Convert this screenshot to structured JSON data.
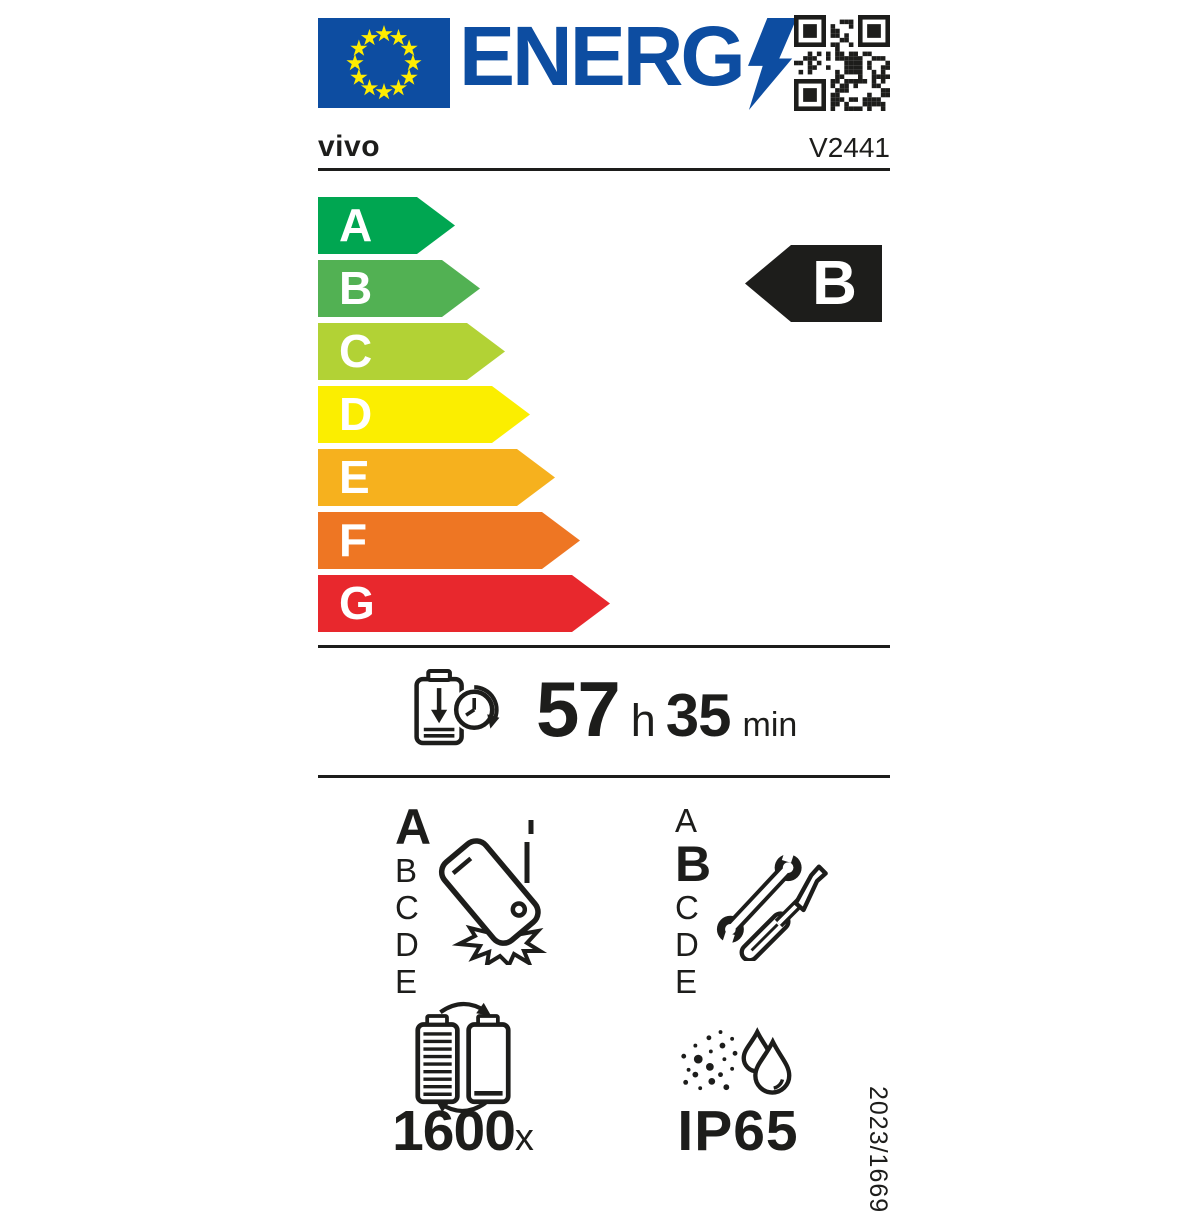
{
  "header": {
    "energ_wordmark": "ENERG",
    "eu_flag": "eu-flag",
    "qr": "qr-code"
  },
  "brand": "vivo",
  "model": "V2441",
  "energy_scale": {
    "rating": "B",
    "classes": [
      {
        "letter": "A",
        "color": "#00a651"
      },
      {
        "letter": "B",
        "color": "#52b153"
      },
      {
        "letter": "C",
        "color": "#b2d235"
      },
      {
        "letter": "D",
        "color": "#fbee00"
      },
      {
        "letter": "E",
        "color": "#f6b11e"
      },
      {
        "letter": "F",
        "color": "#ee7623"
      },
      {
        "letter": "G",
        "color": "#e8282d"
      }
    ]
  },
  "battery_endurance": {
    "hours": "57",
    "hours_unit": "h",
    "minutes": "35",
    "minutes_unit": "min"
  },
  "free_fall": {
    "selected": "A",
    "scale": [
      "A",
      "B",
      "C",
      "D",
      "E"
    ]
  },
  "repairability": {
    "selected": "B",
    "scale": [
      "A",
      "B",
      "C",
      "D",
      "E"
    ]
  },
  "battery_cycles": {
    "value": "1600",
    "unit": "x"
  },
  "ingress_protection": "IP65",
  "regulation": "2023/1669",
  "colors": {
    "eu_blue": "#0d4da1",
    "star_yellow": "#ffec00",
    "black": "#1d1d1b"
  }
}
